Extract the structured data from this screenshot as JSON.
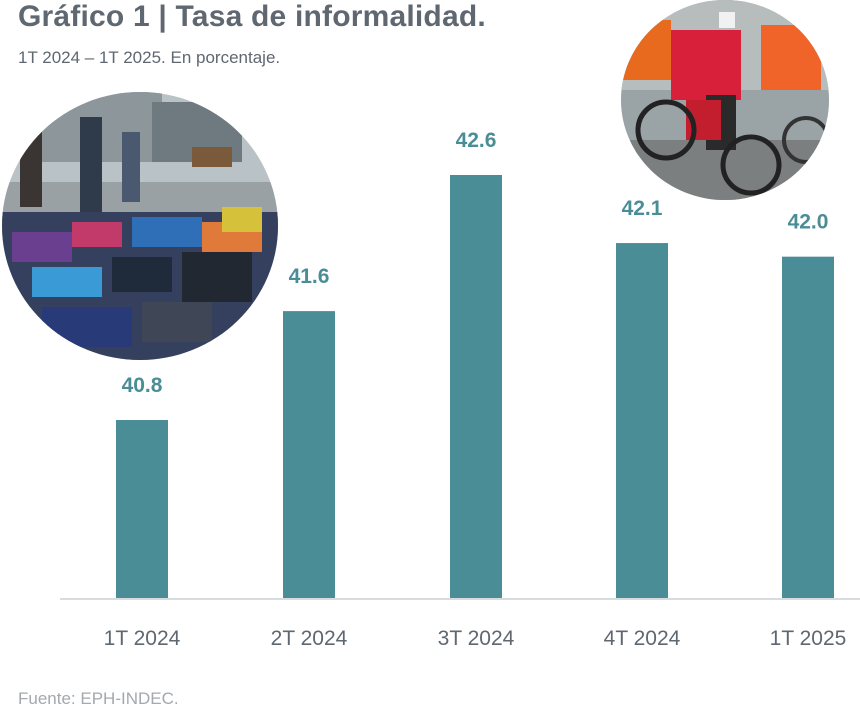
{
  "title": "Gráfico 1 | Tasa de informalidad.",
  "subtitle": "1T 2024 – 1T 2025. En porcentaje.",
  "source": "Fuente: EPH-INDEC.",
  "colors": {
    "bar": "#4b8d96",
    "label": "#4b8d96",
    "axis": "#d9dcde",
    "tick_text": "#5f6770"
  },
  "chart_data": {
    "type": "bar",
    "title": "Gráfico 1 | Tasa de informalidad.",
    "subtitle": "1T 2024 – 1T 2025. En porcentaje.",
    "categories": [
      "1T 2024",
      "2T 2024",
      "3T 2024",
      "4T 2024",
      "1T 2025"
    ],
    "values": [
      40.8,
      41.6,
      42.6,
      42.1,
      42.0
    ],
    "value_labels": [
      "40.8",
      "41.6",
      "42.6",
      "42.1",
      "42.0"
    ],
    "xlabel": "",
    "ylabel": "",
    "grid": false,
    "legend": "none"
  },
  "photos": [
    {
      "icon": "street-market-photo"
    },
    {
      "icon": "delivery-riders-photo"
    }
  ]
}
